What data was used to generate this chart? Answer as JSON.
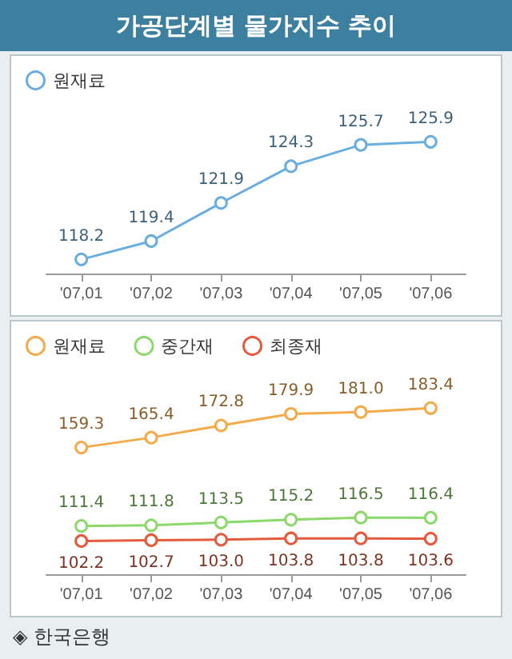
{
  "chart_data": [
    {
      "type": "line",
      "title": "가공단계별 물가지수 추이",
      "categories": [
        "'07,01",
        "'07,02",
        "'07,03",
        "'07,04",
        "'07,05",
        "'07,06"
      ],
      "series": [
        {
          "name": "원재료",
          "color": "#6aaee0",
          "values": [
            118.2,
            119.4,
            121.9,
            124.3,
            125.7,
            125.9
          ]
        }
      ],
      "data_labels": true,
      "marker": "circle",
      "legend": "top left",
      "grid": false
    },
    {
      "type": "line",
      "categories": [
        "'07,01",
        "'07,02",
        "'07,03",
        "'07,04",
        "'07,05",
        "'07,06"
      ],
      "series": [
        {
          "name": "원재료",
          "color": "#f5aa4a",
          "values": [
            159.3,
            165.4,
            172.8,
            179.9,
            181.0,
            183.4
          ],
          "value_labels": [
            "159.3",
            "165.4",
            "172.8",
            "179.9",
            "181.0",
            "183.4"
          ]
        },
        {
          "name": "중간재",
          "color": "#8cd86a",
          "values": [
            111.4,
            111.8,
            113.5,
            115.2,
            116.5,
            116.4
          ]
        },
        {
          "name": "최종재",
          "color": "#e45a3c",
          "values": [
            102.2,
            102.7,
            103.0,
            103.8,
            103.8,
            103.6
          ],
          "value_labels": [
            "102.2",
            "102.7",
            "103.0",
            "103.8",
            "103.8",
            "103.6"
          ]
        }
      ],
      "data_labels": true,
      "marker": "circle",
      "legend": "top left",
      "grid": false,
      "annotations": [
        "◈ 한국은행"
      ]
    }
  ]
}
